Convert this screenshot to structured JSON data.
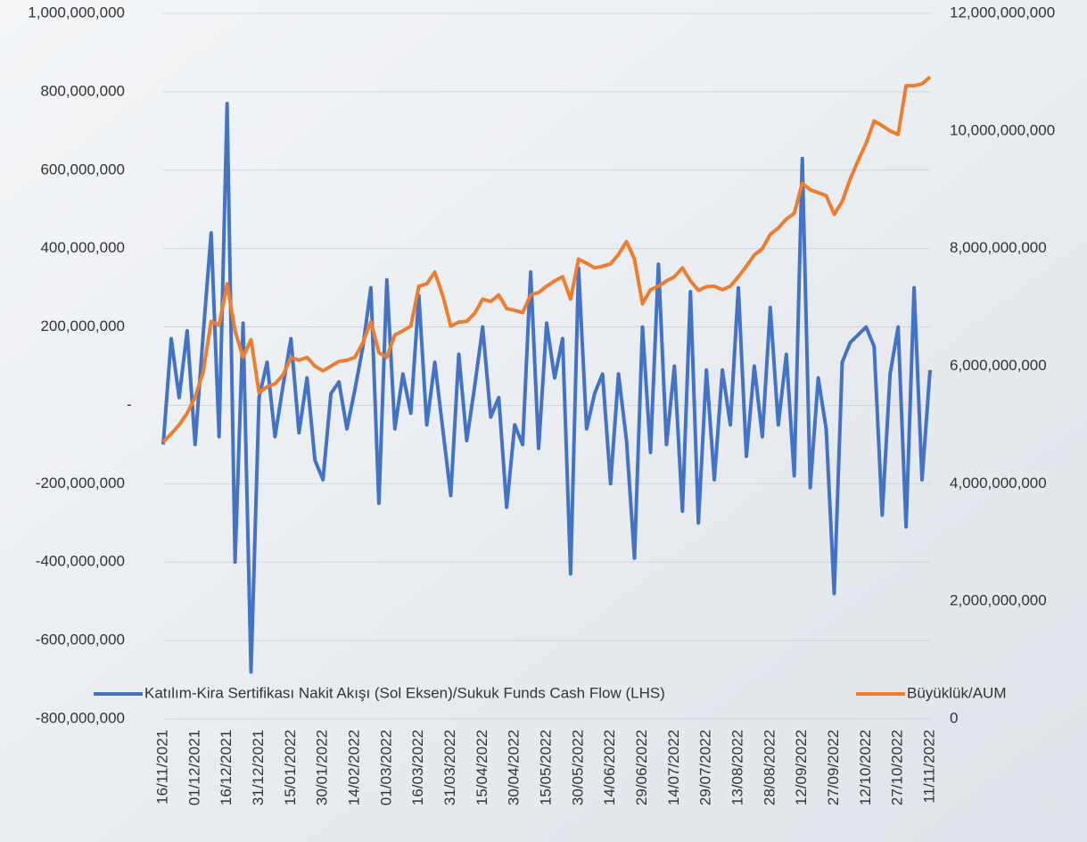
{
  "chart_data": {
    "type": "line",
    "categories": [
      "16/11/2021",
      null,
      null,
      null,
      "01/12/2021",
      null,
      null,
      null,
      "16/12/2021",
      null,
      null,
      null,
      "31/12/2021",
      null,
      null,
      null,
      "15/01/2022",
      null,
      null,
      null,
      "30/01/2022",
      null,
      null,
      null,
      "14/02/2022",
      null,
      null,
      null,
      "01/03/2022",
      null,
      null,
      null,
      "16/03/2022",
      null,
      null,
      null,
      "31/03/2022",
      null,
      null,
      null,
      "15/04/2022",
      null,
      null,
      null,
      "30/04/2022",
      null,
      null,
      null,
      "15/05/2022",
      null,
      null,
      null,
      "30/05/2022",
      null,
      null,
      null,
      "14/06/2022",
      null,
      null,
      null,
      "29/06/2022",
      null,
      null,
      null,
      "14/07/2022",
      null,
      null,
      null,
      "29/07/2022",
      null,
      null,
      null,
      "13/08/2022",
      null,
      null,
      null,
      "28/08/2022",
      null,
      null,
      null,
      "12/09/2022",
      null,
      null,
      null,
      "27/09/2022",
      null,
      null,
      null,
      "12/10/2022",
      null,
      null,
      null,
      "27/10/2022",
      null,
      null,
      null,
      "11/11/2022"
    ],
    "series": [
      {
        "name": "Katılım-Kira Sertifikası Nakit Akışı (Sol Eksen)/Sukuk Funds Cash Flow (LHS)",
        "color": "#4472c4",
        "axis": "y",
        "values": [
          -100000000,
          170000000,
          20000000,
          190000000,
          -100000000,
          180000000,
          440000000,
          -80000000,
          770000000,
          -400000000,
          210000000,
          -680000000,
          20000000,
          110000000,
          -80000000,
          50000000,
          170000000,
          -70000000,
          70000000,
          -140000000,
          -190000000,
          30000000,
          60000000,
          -60000000,
          40000000,
          150000000,
          300000000,
          -250000000,
          320000000,
          -60000000,
          80000000,
          -20000000,
          280000000,
          -50000000,
          110000000,
          -60000000,
          -230000000,
          130000000,
          -90000000,
          50000000,
          200000000,
          -30000000,
          20000000,
          -260000000,
          -50000000,
          -100000000,
          340000000,
          -110000000,
          210000000,
          70000000,
          170000000,
          -430000000,
          350000000,
          -60000000,
          30000000,
          80000000,
          -200000000,
          80000000,
          -90000000,
          -390000000,
          200000000,
          -120000000,
          360000000,
          -100000000,
          100000000,
          -270000000,
          290000000,
          -300000000,
          90000000,
          -190000000,
          90000000,
          -50000000,
          300000000,
          -130000000,
          100000000,
          -80000000,
          250000000,
          -50000000,
          130000000,
          -180000000,
          630000000,
          -210000000,
          70000000,
          -60000000,
          -480000000,
          110000000,
          160000000,
          180000000,
          200000000,
          150000000,
          -280000000,
          80000000,
          200000000,
          -310000000,
          300000000,
          -190000000,
          90000000
        ]
      },
      {
        "name": "Büyüklük/AUM",
        "color": "#ed7d31",
        "axis": "y2",
        "values": [
          4710000000,
          4850000000,
          5000000000,
          5200000000,
          5470000000,
          5900000000,
          6760000000,
          6700000000,
          7400000000,
          6600000000,
          6150000000,
          6450000000,
          5550000000,
          5650000000,
          5700000000,
          5850000000,
          6150000000,
          6100000000,
          6150000000,
          6000000000,
          5920000000,
          6000000000,
          6080000000,
          6100000000,
          6150000000,
          6400000000,
          6760000000,
          6230000000,
          6150000000,
          6530000000,
          6600000000,
          6680000000,
          7360000000,
          7400000000,
          7600000000,
          7200000000,
          6680000000,
          6750000000,
          6760000000,
          6900000000,
          7140000000,
          7100000000,
          7210000000,
          6980000000,
          6950000000,
          6910000000,
          7210000000,
          7250000000,
          7360000000,
          7450000000,
          7520000000,
          7140000000,
          7820000000,
          7750000000,
          7670000000,
          7700000000,
          7740000000,
          7900000000,
          8120000000,
          7820000000,
          7060000000,
          7300000000,
          7360000000,
          7450000000,
          7520000000,
          7670000000,
          7450000000,
          7290000000,
          7350000000,
          7360000000,
          7300000000,
          7360000000,
          7520000000,
          7700000000,
          7890000000,
          8000000000,
          8240000000,
          8350000000,
          8500000000,
          8600000000,
          9110000000,
          9000000000,
          8950000000,
          8900000000,
          8580000000,
          8800000000,
          9180000000,
          9500000000,
          9790000000,
          10170000000,
          10090000000,
          10000000000,
          9940000000,
          10770000000,
          10770000000,
          10800000000,
          10920000000
        ]
      }
    ],
    "ylim": [
      -800000000,
      1000000000
    ],
    "yticks": [
      {
        "value": -800000000,
        "label": "-800,000,000"
      },
      {
        "value": -600000000,
        "label": "-600,000,000"
      },
      {
        "value": -400000000,
        "label": "-400,000,000"
      },
      {
        "value": -200000000,
        "label": "-200,000,000"
      },
      {
        "value": 0,
        "label": "-"
      },
      {
        "value": 200000000,
        "label": "200,000,000"
      },
      {
        "value": 400000000,
        "label": "400,000,000"
      },
      {
        "value": 600000000,
        "label": "600,000,000"
      },
      {
        "value": 800000000,
        "label": "800,000,000"
      },
      {
        "value": 1000000000,
        "label": "1,000,000,000"
      }
    ],
    "y2lim": [
      0,
      12000000000
    ],
    "y2ticks": [
      0,
      {
        "value": 2000000000,
        "label": "2,000,000,000"
      },
      {
        "value": 4000000000,
        "label": "4,000,000,000"
      },
      {
        "value": 6000000000,
        "label": "6,000,000,000"
      },
      {
        "value": 8000000000,
        "label": "8,000,000,000"
      },
      {
        "value": 10000000000,
        "label": "10,000,000,000"
      },
      {
        "value": 12000000000,
        "label": "12,000,000,000"
      }
    ],
    "grid": true,
    "legend": "bottom"
  }
}
